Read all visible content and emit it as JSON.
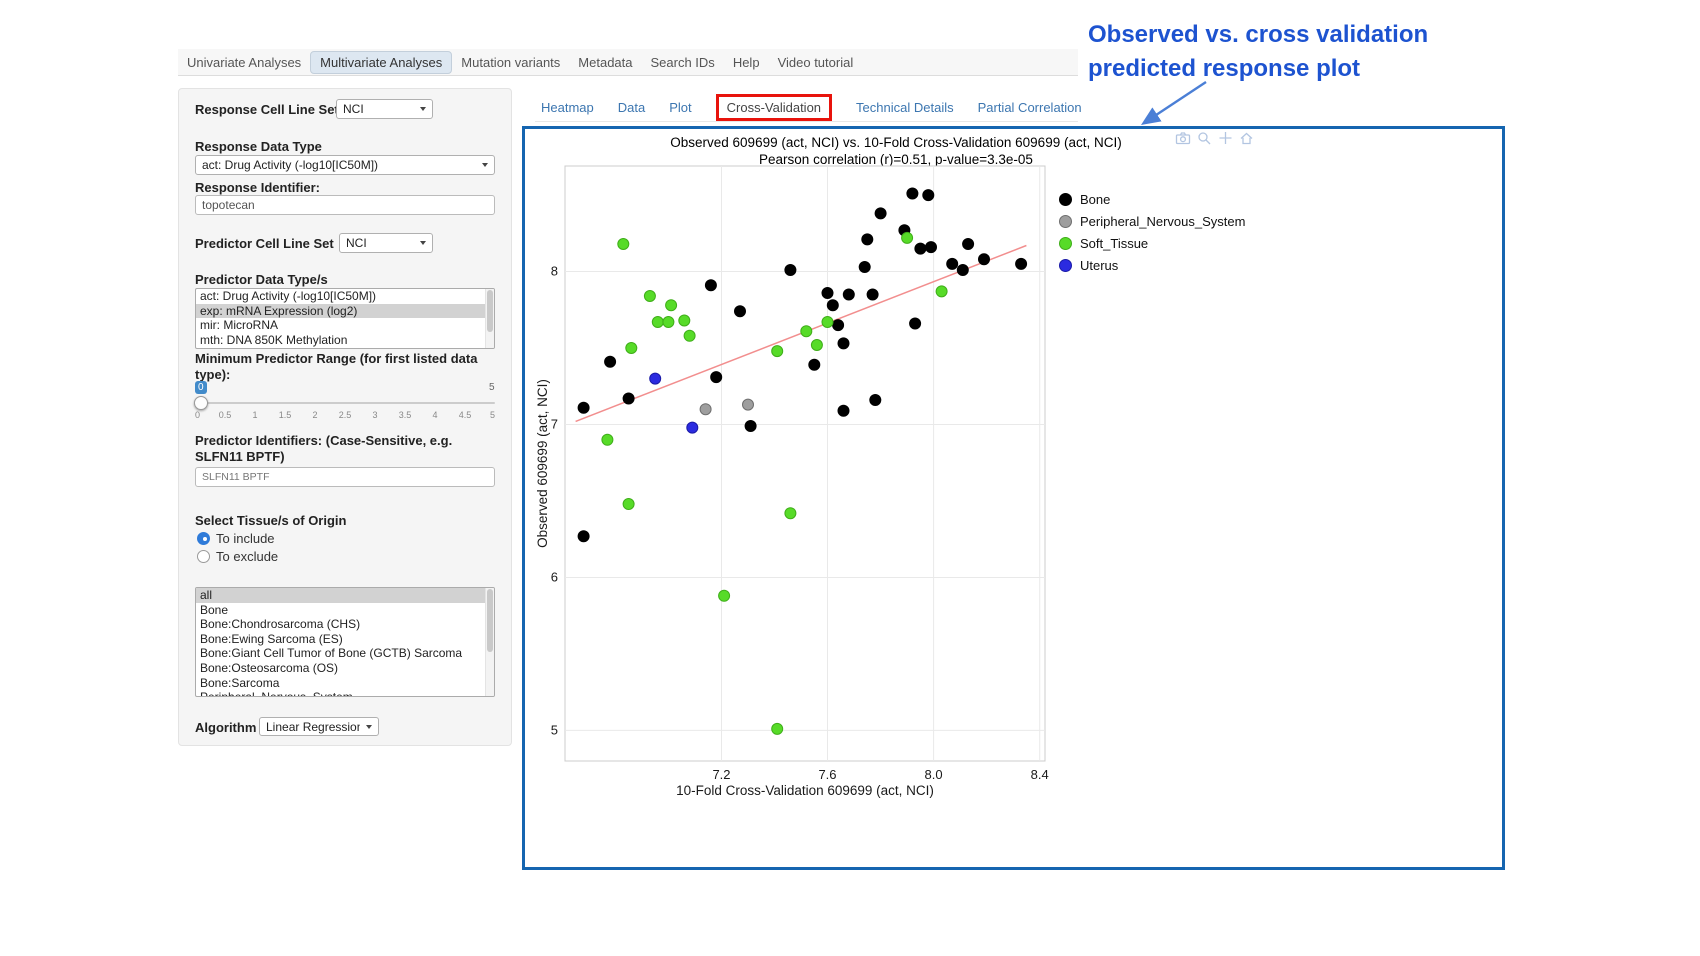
{
  "nav": {
    "items": [
      {
        "label": "Univariate Analyses",
        "active": false
      },
      {
        "label": "Multivariate Analyses",
        "active": true
      },
      {
        "label": "Mutation variants",
        "active": false
      },
      {
        "label": "Metadata",
        "active": false
      },
      {
        "label": "Search IDs",
        "active": false
      },
      {
        "label": "Help",
        "active": false
      },
      {
        "label": "Video tutorial",
        "active": false
      }
    ]
  },
  "sidebar": {
    "response_cell_line_set": {
      "label": "Response Cell Line Set",
      "value": "NCI"
    },
    "response_data_type": {
      "label": "Response Data Type",
      "value": "act: Drug Activity (-log10[IC50M])"
    },
    "response_identifier": {
      "label": "Response Identifier:",
      "value": "topotecan"
    },
    "predictor_cell_line_set": {
      "label": "Predictor Cell Line Set",
      "value": "NCI"
    },
    "predictor_data_types": {
      "label": "Predictor Data Type/s",
      "options": [
        "act: Drug Activity (-log10[IC50M])",
        "exp: mRNA Expression (log2)",
        "mir: MicroRNA",
        "mth: DNA 850K Methylation"
      ],
      "selected": "exp: mRNA Expression (log2)"
    },
    "min_predictor_range": {
      "label": "Minimum Predictor Range (for first listed data type):",
      "value": "0",
      "max_label": "5",
      "ticks": [
        "0",
        "0.5",
        "1",
        "1.5",
        "2",
        "2.5",
        "3",
        "3.5",
        "4",
        "4.5",
        "5"
      ]
    },
    "predictor_identifiers": {
      "label": "Predictor Identifiers: (Case-Sensitive, e.g. SLFN11 BPTF)",
      "value": "SLFN11 BPTF"
    },
    "tissue_origin": {
      "label": "Select Tissue/s of Origin",
      "radios": [
        {
          "label": "To include",
          "checked": true
        },
        {
          "label": "To exclude",
          "checked": false
        }
      ],
      "options": [
        "all",
        "Bone",
        "Bone:Chondrosarcoma (CHS)",
        "Bone:Ewing Sarcoma (ES)",
        "Bone:Giant Cell Tumor of Bone (GCTB) Sarcoma",
        "Bone:Osteosarcoma (OS)",
        "Bone:Sarcoma",
        "Peripheral_Nervous_System"
      ],
      "selected": "all"
    },
    "algorithm": {
      "label": "Algorithm",
      "value": "Linear Regression"
    }
  },
  "tabs": {
    "items": [
      "Heatmap",
      "Data",
      "Plot",
      "Cross-Validation",
      "Technical Details",
      "Partial Correlation"
    ],
    "highlighted": "Cross-Validation",
    "highlight_color": "#e8130c"
  },
  "plot_box_border_color": "#1565b0",
  "modebar_icons": [
    "camera-icon",
    "zoom-icon",
    "pan-icon",
    "home-icon"
  ],
  "annotation": {
    "line1": "Observed vs. cross validation",
    "line2": "predicted response plot",
    "color": "#1d53d0"
  },
  "chart_data": {
    "type": "scatter",
    "title": "Observed 609699 (act, NCI) vs. 10-Fold Cross-Validation 609699 (act, NCI)",
    "subtitle": "Pearson correlation (r)=0.51, p-value=3.3e-05",
    "xlabel": "10-Fold Cross-Validation 609699 (act, NCI)",
    "ylabel": "Observed 609699 (act, NCI)",
    "xlim": [
      6.61,
      8.42
    ],
    "ylim": [
      4.8,
      8.69
    ],
    "xticks": [
      7.2,
      7.6,
      8.0,
      8.4
    ],
    "xtick_labels": [
      "7.2",
      "7.6",
      "8.0",
      "8.4"
    ],
    "yticks": [
      5,
      6,
      7,
      8
    ],
    "ytick_labels": [
      "5",
      "6",
      "7",
      "8"
    ],
    "grid": true,
    "legend_position": "right",
    "regression_line": {
      "x1": 6.65,
      "y1": 7.02,
      "x2": 8.35,
      "y2": 8.17,
      "color": "#f28e8e"
    },
    "series": [
      {
        "name": "Bone",
        "color": "#000000",
        "stroke": "#000000",
        "points": [
          [
            6.68,
            7.11
          ],
          [
            6.68,
            6.27
          ],
          [
            6.78,
            7.41
          ],
          [
            6.85,
            7.17
          ],
          [
            7.16,
            7.91
          ],
          [
            7.18,
            7.31
          ],
          [
            7.27,
            7.74
          ],
          [
            7.31,
            6.99
          ],
          [
            7.46,
            8.01
          ],
          [
            7.55,
            7.39
          ],
          [
            7.6,
            7.86
          ],
          [
            7.62,
            7.78
          ],
          [
            7.64,
            7.65
          ],
          [
            7.66,
            7.53
          ],
          [
            7.66,
            7.09
          ],
          [
            7.68,
            7.85
          ],
          [
            7.74,
            8.03
          ],
          [
            7.75,
            8.21
          ],
          [
            7.77,
            7.85
          ],
          [
            7.78,
            7.16
          ],
          [
            7.8,
            8.38
          ],
          [
            7.89,
            8.27
          ],
          [
            7.92,
            8.51
          ],
          [
            7.93,
            7.66
          ],
          [
            7.95,
            8.15
          ],
          [
            7.98,
            8.5
          ],
          [
            7.99,
            8.16
          ],
          [
            8.07,
            8.05
          ],
          [
            8.11,
            8.01
          ],
          [
            8.13,
            8.18
          ],
          [
            8.19,
            8.08
          ],
          [
            8.33,
            8.05
          ]
        ]
      },
      {
        "name": "Peripheral_Nervous_System",
        "color": "#9e9e9e",
        "stroke": "#6f6f6f",
        "points": [
          [
            7.14,
            7.1
          ],
          [
            7.3,
            7.13
          ]
        ]
      },
      {
        "name": "Soft_Tissue",
        "color": "#57db28",
        "stroke": "#3fae19",
        "points": [
          [
            6.83,
            8.18
          ],
          [
            6.77,
            6.9
          ],
          [
            6.85,
            6.48
          ],
          [
            6.86,
            7.5
          ],
          [
            6.93,
            7.84
          ],
          [
            6.96,
            7.67
          ],
          [
            7.0,
            7.67
          ],
          [
            7.01,
            7.78
          ],
          [
            7.06,
            7.68
          ],
          [
            7.08,
            7.58
          ],
          [
            7.21,
            5.88
          ],
          [
            7.41,
            5.01
          ],
          [
            7.46,
            6.42
          ],
          [
            7.41,
            7.48
          ],
          [
            7.52,
            7.61
          ],
          [
            7.56,
            7.52
          ],
          [
            7.6,
            7.67
          ],
          [
            7.9,
            8.22
          ],
          [
            8.03,
            7.87
          ]
        ]
      },
      {
        "name": "Uterus",
        "color": "#2b2be0",
        "stroke": "#1b1ba8",
        "points": [
          [
            6.95,
            7.3
          ],
          [
            7.09,
            6.98
          ]
        ]
      }
    ]
  }
}
